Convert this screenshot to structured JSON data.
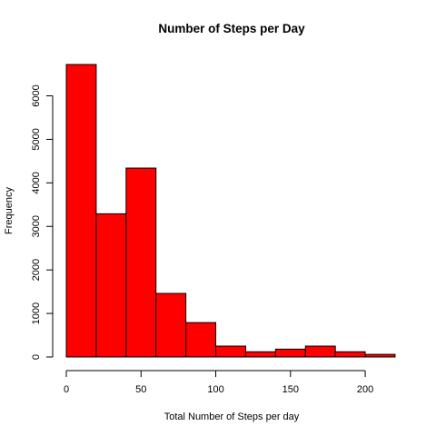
{
  "chart_data": {
    "type": "bar",
    "subtype": "histogram",
    "title": "Number of Steps per Day",
    "xlabel": "Total Number of Steps per day",
    "ylabel": "Frequency",
    "bin_edges": [
      0,
      20,
      40,
      60,
      80,
      100,
      120,
      140,
      160,
      180,
      200,
      220
    ],
    "values": [
      6720,
      3290,
      4340,
      1460,
      790,
      250,
      120,
      180,
      250,
      120,
      60
    ],
    "xlim": [
      0,
      220
    ],
    "ylim": [
      0,
      6720
    ],
    "x_ticks": [
      0,
      50,
      100,
      150,
      200
    ],
    "x_tick_labels": [
      "0",
      "50",
      "100",
      "150",
      "200"
    ],
    "y_ticks": [
      0,
      1000,
      2000,
      3000,
      4000,
      5000,
      6000
    ],
    "y_tick_labels": [
      "0",
      "1000",
      "2000",
      "3000",
      "4000",
      "5000",
      "6000"
    ],
    "bar_color": "#ff0000",
    "bar_border_color": "#000000",
    "grid": false,
    "legend": "none"
  }
}
